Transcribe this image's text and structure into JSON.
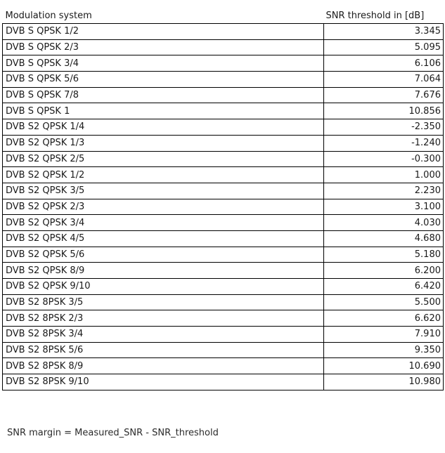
{
  "table": {
    "columns": [
      {
        "label": "Modulation system"
      },
      {
        "label": "SNR threshold in [dB]"
      }
    ],
    "rows": [
      {
        "system": "DVB S QPSK 1/2",
        "snr": "3.345"
      },
      {
        "system": "DVB S QPSK 2/3",
        "snr": "5.095"
      },
      {
        "system": "DVB S QPSK 3/4",
        "snr": "6.106"
      },
      {
        "system": "DVB S QPSK 5/6",
        "snr": "7.064"
      },
      {
        "system": "DVB S QPSK 7/8",
        "snr": "7.676"
      },
      {
        "system": "DVB S QPSK 1",
        "snr": "10.856"
      },
      {
        "system": "DVB S2 QPSK 1/4",
        "snr": "-2.350"
      },
      {
        "system": "DVB S2 QPSK 1/3",
        "snr": "-1.240"
      },
      {
        "system": "DVB S2 QPSK 2/5",
        "snr": "-0.300"
      },
      {
        "system": "DVB S2 QPSK 1/2",
        "snr": "1.000"
      },
      {
        "system": "DVB S2 QPSK 3/5",
        "snr": "2.230"
      },
      {
        "system": "DVB S2 QPSK 2/3",
        "snr": "3.100"
      },
      {
        "system": "DVB S2 QPSK 3/4",
        "snr": "4.030"
      },
      {
        "system": "DVB S2 QPSK 4/5",
        "snr": "4.680"
      },
      {
        "system": "DVB S2 QPSK 5/6",
        "snr": "5.180"
      },
      {
        "system": "DVB S2 QPSK 8/9",
        "snr": "6.200"
      },
      {
        "system": "DVB S2 QPSK 9/10",
        "snr": "6.420"
      },
      {
        "system": "DVB S2 8PSK 3/5",
        "snr": "5.500"
      },
      {
        "system": "DVB S2 8PSK 2/3",
        "snr": "6.620"
      },
      {
        "system": "DVB S2 8PSK 3/4",
        "snr": "7.910"
      },
      {
        "system": "DVB S2 8PSK 5/6",
        "snr": "9.350"
      },
      {
        "system": "DVB S2 8PSK 8/9",
        "snr": "10.690"
      },
      {
        "system": "DVB S2 8PSK 9/10",
        "snr": "10.980"
      }
    ]
  },
  "footer": {
    "formula": "SNR margin = Measured_SNR - SNR_threshold"
  },
  "colors": {
    "background": "#ffffff",
    "border": "#000000",
    "text": "#1a1a1a"
  },
  "chart_data": {
    "type": "table",
    "title": "",
    "categories": [
      "DVB S QPSK 1/2",
      "DVB S QPSK 2/3",
      "DVB S QPSK 3/4",
      "DVB S QPSK 5/6",
      "DVB S QPSK 7/8",
      "DVB S QPSK 1",
      "DVB S2 QPSK 1/4",
      "DVB S2 QPSK 1/3",
      "DVB S2 QPSK 2/5",
      "DVB S2 QPSK 1/2",
      "DVB S2 QPSK 3/5",
      "DVB S2 QPSK 2/3",
      "DVB S2 QPSK 3/4",
      "DVB S2 QPSK 4/5",
      "DVB S2 QPSK 5/6",
      "DVB S2 QPSK 8/9",
      "DVB S2 QPSK 9/10",
      "DVB S2 8PSK 3/5",
      "DVB S2 8PSK 2/3",
      "DVB S2 8PSK 3/4",
      "DVB S2 8PSK 5/6",
      "DVB S2 8PSK 8/9",
      "DVB S2 8PSK 9/10"
    ],
    "values": [
      3.345,
      5.095,
      6.106,
      7.064,
      7.676,
      10.856,
      -2.35,
      -1.24,
      -0.3,
      1.0,
      2.23,
      3.1,
      4.03,
      4.68,
      5.18,
      6.2,
      6.42,
      5.5,
      6.62,
      7.91,
      9.35,
      10.69,
      10.98
    ],
    "xlabel": "Modulation system",
    "ylabel": "SNR threshold in [dB]"
  }
}
